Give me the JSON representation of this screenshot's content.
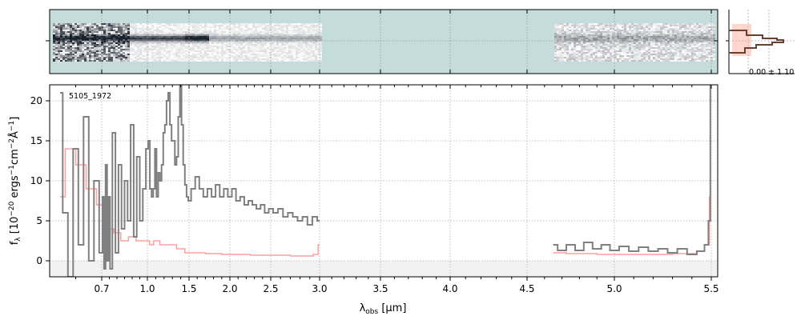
{
  "chart_data": {
    "type": "line",
    "object_label": "5105_1972",
    "xlabel": "λ_obs [μm]",
    "ylabel": "f_λ [10^-20 ergs^-1cm^-2Å^-1]",
    "ylim": [
      -2,
      22
    ],
    "x_axis_scale": "piecewise (resolution-stretched)",
    "x_ticks": [
      {
        "v": 0.7,
        "label": "0.7"
      },
      {
        "v": 1.0,
        "label": "1.0"
      },
      {
        "v": 1.5,
        "label": "1.5"
      },
      {
        "v": 2.0,
        "label": "2.0"
      },
      {
        "v": 2.5,
        "label": "2.5"
      },
      {
        "v": 3.0,
        "label": "3.0"
      },
      {
        "v": 3.5,
        "label": "3.5"
      },
      {
        "v": 4.0,
        "label": "4.0"
      },
      {
        "v": 4.5,
        "label": "4.5"
      },
      {
        "v": 5.0,
        "label": "5.0"
      },
      {
        "v": 5.5,
        "label": "5.5"
      }
    ],
    "y_ticks": [
      {
        "v": 0,
        "label": "0"
      },
      {
        "v": 5,
        "label": "5"
      },
      {
        "v": 10,
        "label": "10"
      },
      {
        "v": 15,
        "label": "15"
      },
      {
        "v": 20,
        "label": "20"
      }
    ],
    "grid": true,
    "series": [
      {
        "color": "#808080",
        "segments": [
          [
            [
              0.62,
              21
            ],
            [
              0.63,
              6
            ],
            [
              0.64,
              -2
            ],
            [
              0.65,
              14
            ],
            [
              0.66,
              2
            ],
            [
              0.67,
              18
            ],
            [
              0.68,
              0
            ],
            [
              0.69,
              10
            ],
            [
              0.7,
              1
            ],
            [
              0.71,
              8
            ],
            [
              0.72,
              -1
            ],
            [
              0.73,
              12
            ],
            [
              0.74,
              0
            ],
            [
              0.75,
              8
            ],
            [
              0.76,
              -1
            ],
            [
              0.78,
              16
            ],
            [
              0.8,
              1
            ],
            [
              0.82,
              12
            ],
            [
              0.84,
              4
            ],
            [
              0.86,
              10
            ],
            [
              0.88,
              5
            ],
            [
              0.9,
              17
            ],
            [
              0.92,
              3
            ],
            [
              0.94,
              13
            ],
            [
              0.96,
              5
            ],
            [
              0.98,
              9
            ],
            [
              1.0,
              14
            ],
            [
              1.02,
              15
            ],
            [
              1.04,
              9
            ],
            [
              1.06,
              8
            ],
            [
              1.08,
              9
            ],
            [
              1.1,
              14
            ],
            [
              1.12,
              8
            ],
            [
              1.14,
              11
            ],
            [
              1.16,
              10
            ],
            [
              1.18,
              12
            ],
            [
              1.2,
              16
            ],
            [
              1.22,
              17
            ],
            [
              1.24,
              20
            ],
            [
              1.26,
              21
            ],
            [
              1.28,
              17
            ],
            [
              1.3,
              15
            ],
            [
              1.32,
              15
            ],
            [
              1.34,
              12
            ],
            [
              1.36,
              13
            ],
            [
              1.38,
              18
            ],
            [
              1.4,
              22
            ],
            [
              1.42,
              17
            ],
            [
              1.44,
              12
            ],
            [
              1.46,
              9.5
            ],
            [
              1.48,
              8
            ],
            [
              1.5,
              7.5
            ],
            [
              1.55,
              9
            ],
            [
              1.6,
              10.5
            ],
            [
              1.65,
              9
            ],
            [
              1.7,
              8
            ],
            [
              1.75,
              9
            ],
            [
              1.8,
              8
            ],
            [
              1.85,
              9.5
            ],
            [
              1.9,
              8
            ],
            [
              1.95,
              9
            ],
            [
              2.0,
              8
            ],
            [
              2.05,
              9
            ],
            [
              2.1,
              7.5
            ],
            [
              2.15,
              8
            ],
            [
              2.2,
              7
            ],
            [
              2.25,
              7.5
            ],
            [
              2.3,
              7
            ],
            [
              2.35,
              6.5
            ],
            [
              2.4,
              7
            ],
            [
              2.45,
              6
            ],
            [
              2.5,
              6.5
            ],
            [
              2.55,
              6
            ],
            [
              2.6,
              6.5
            ],
            [
              2.65,
              5.5
            ],
            [
              2.7,
              6
            ],
            [
              2.75,
              5.5
            ],
            [
              2.8,
              5
            ],
            [
              2.85,
              5.5
            ],
            [
              2.9,
              4.5
            ],
            [
              2.95,
              5.5
            ],
            [
              3.0,
              5
            ]
          ],
          [
            [
              4.65,
              2
            ],
            [
              4.7,
              1.3
            ],
            [
              4.75,
              2
            ],
            [
              4.8,
              1.3
            ],
            [
              4.85,
              2.3
            ],
            [
              4.9,
              1.5
            ],
            [
              4.95,
              2
            ],
            [
              5.0,
              1.3
            ],
            [
              5.05,
              1.8
            ],
            [
              5.1,
              1.2
            ],
            [
              5.15,
              1.7
            ],
            [
              5.2,
              1.2
            ],
            [
              5.25,
              1.5
            ],
            [
              5.3,
              1
            ],
            [
              5.35,
              1.5
            ],
            [
              5.4,
              0.8
            ],
            [
              5.45,
              1.2
            ],
            [
              5.48,
              2
            ],
            [
              5.49,
              5
            ],
            [
              5.5,
              22
            ]
          ]
        ]
      },
      {
        "color": "#ff9f9f",
        "segments": [
          [
            [
              0.62,
              8
            ],
            [
              0.64,
              14
            ],
            [
              0.66,
              12
            ],
            [
              0.68,
              9
            ],
            [
              0.7,
              7
            ],
            [
              0.72,
              5.5
            ],
            [
              0.74,
              4.5
            ],
            [
              0.76,
              4
            ],
            [
              0.8,
              3.5
            ],
            [
              0.85,
              2.5
            ],
            [
              0.9,
              3
            ],
            [
              0.95,
              2.5
            ],
            [
              1.0,
              2.5
            ],
            [
              1.05,
              2
            ],
            [
              1.1,
              2.5
            ],
            [
              1.2,
              2
            ],
            [
              1.3,
              2
            ],
            [
              1.4,
              1.5
            ],
            [
              1.5,
              1
            ],
            [
              1.6,
              1
            ],
            [
              1.8,
              0.9
            ],
            [
              2.0,
              0.8
            ],
            [
              2.5,
              0.7
            ],
            [
              2.9,
              0.6
            ],
            [
              2.97,
              0.8
            ],
            [
              3.0,
              2
            ]
          ],
          [
            [
              4.65,
              1
            ],
            [
              4.8,
              0.9
            ],
            [
              5.0,
              0.8
            ],
            [
              5.2,
              0.8
            ],
            [
              5.4,
              0.9
            ],
            [
              5.45,
              1.2
            ],
            [
              5.48,
              2
            ],
            [
              5.5,
              8
            ]
          ]
        ]
      }
    ],
    "marginal_histogram": {
      "label": "0.00 ± 1.10"
    }
  }
}
